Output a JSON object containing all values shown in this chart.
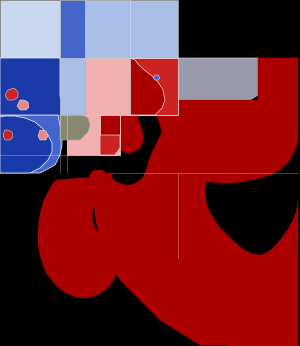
{
  "background_color": "#000000",
  "colors": {
    "dark_red": "#aa0000",
    "medium_red": "#cc2222",
    "light_red": "#e88888",
    "very_light_red": "#f0b0b0",
    "dark_blue": "#1a3aaa",
    "medium_blue": "#4466cc",
    "light_blue": "#88aadd",
    "lighter_blue": "#aabfe8",
    "lightest_blue": "#c8d8f0",
    "gray": "#999aaa",
    "light_gray": "#b0b8c0",
    "olive": "#888870"
  },
  "figsize": [
    3.0,
    3.46
  ],
  "dpi": 100
}
